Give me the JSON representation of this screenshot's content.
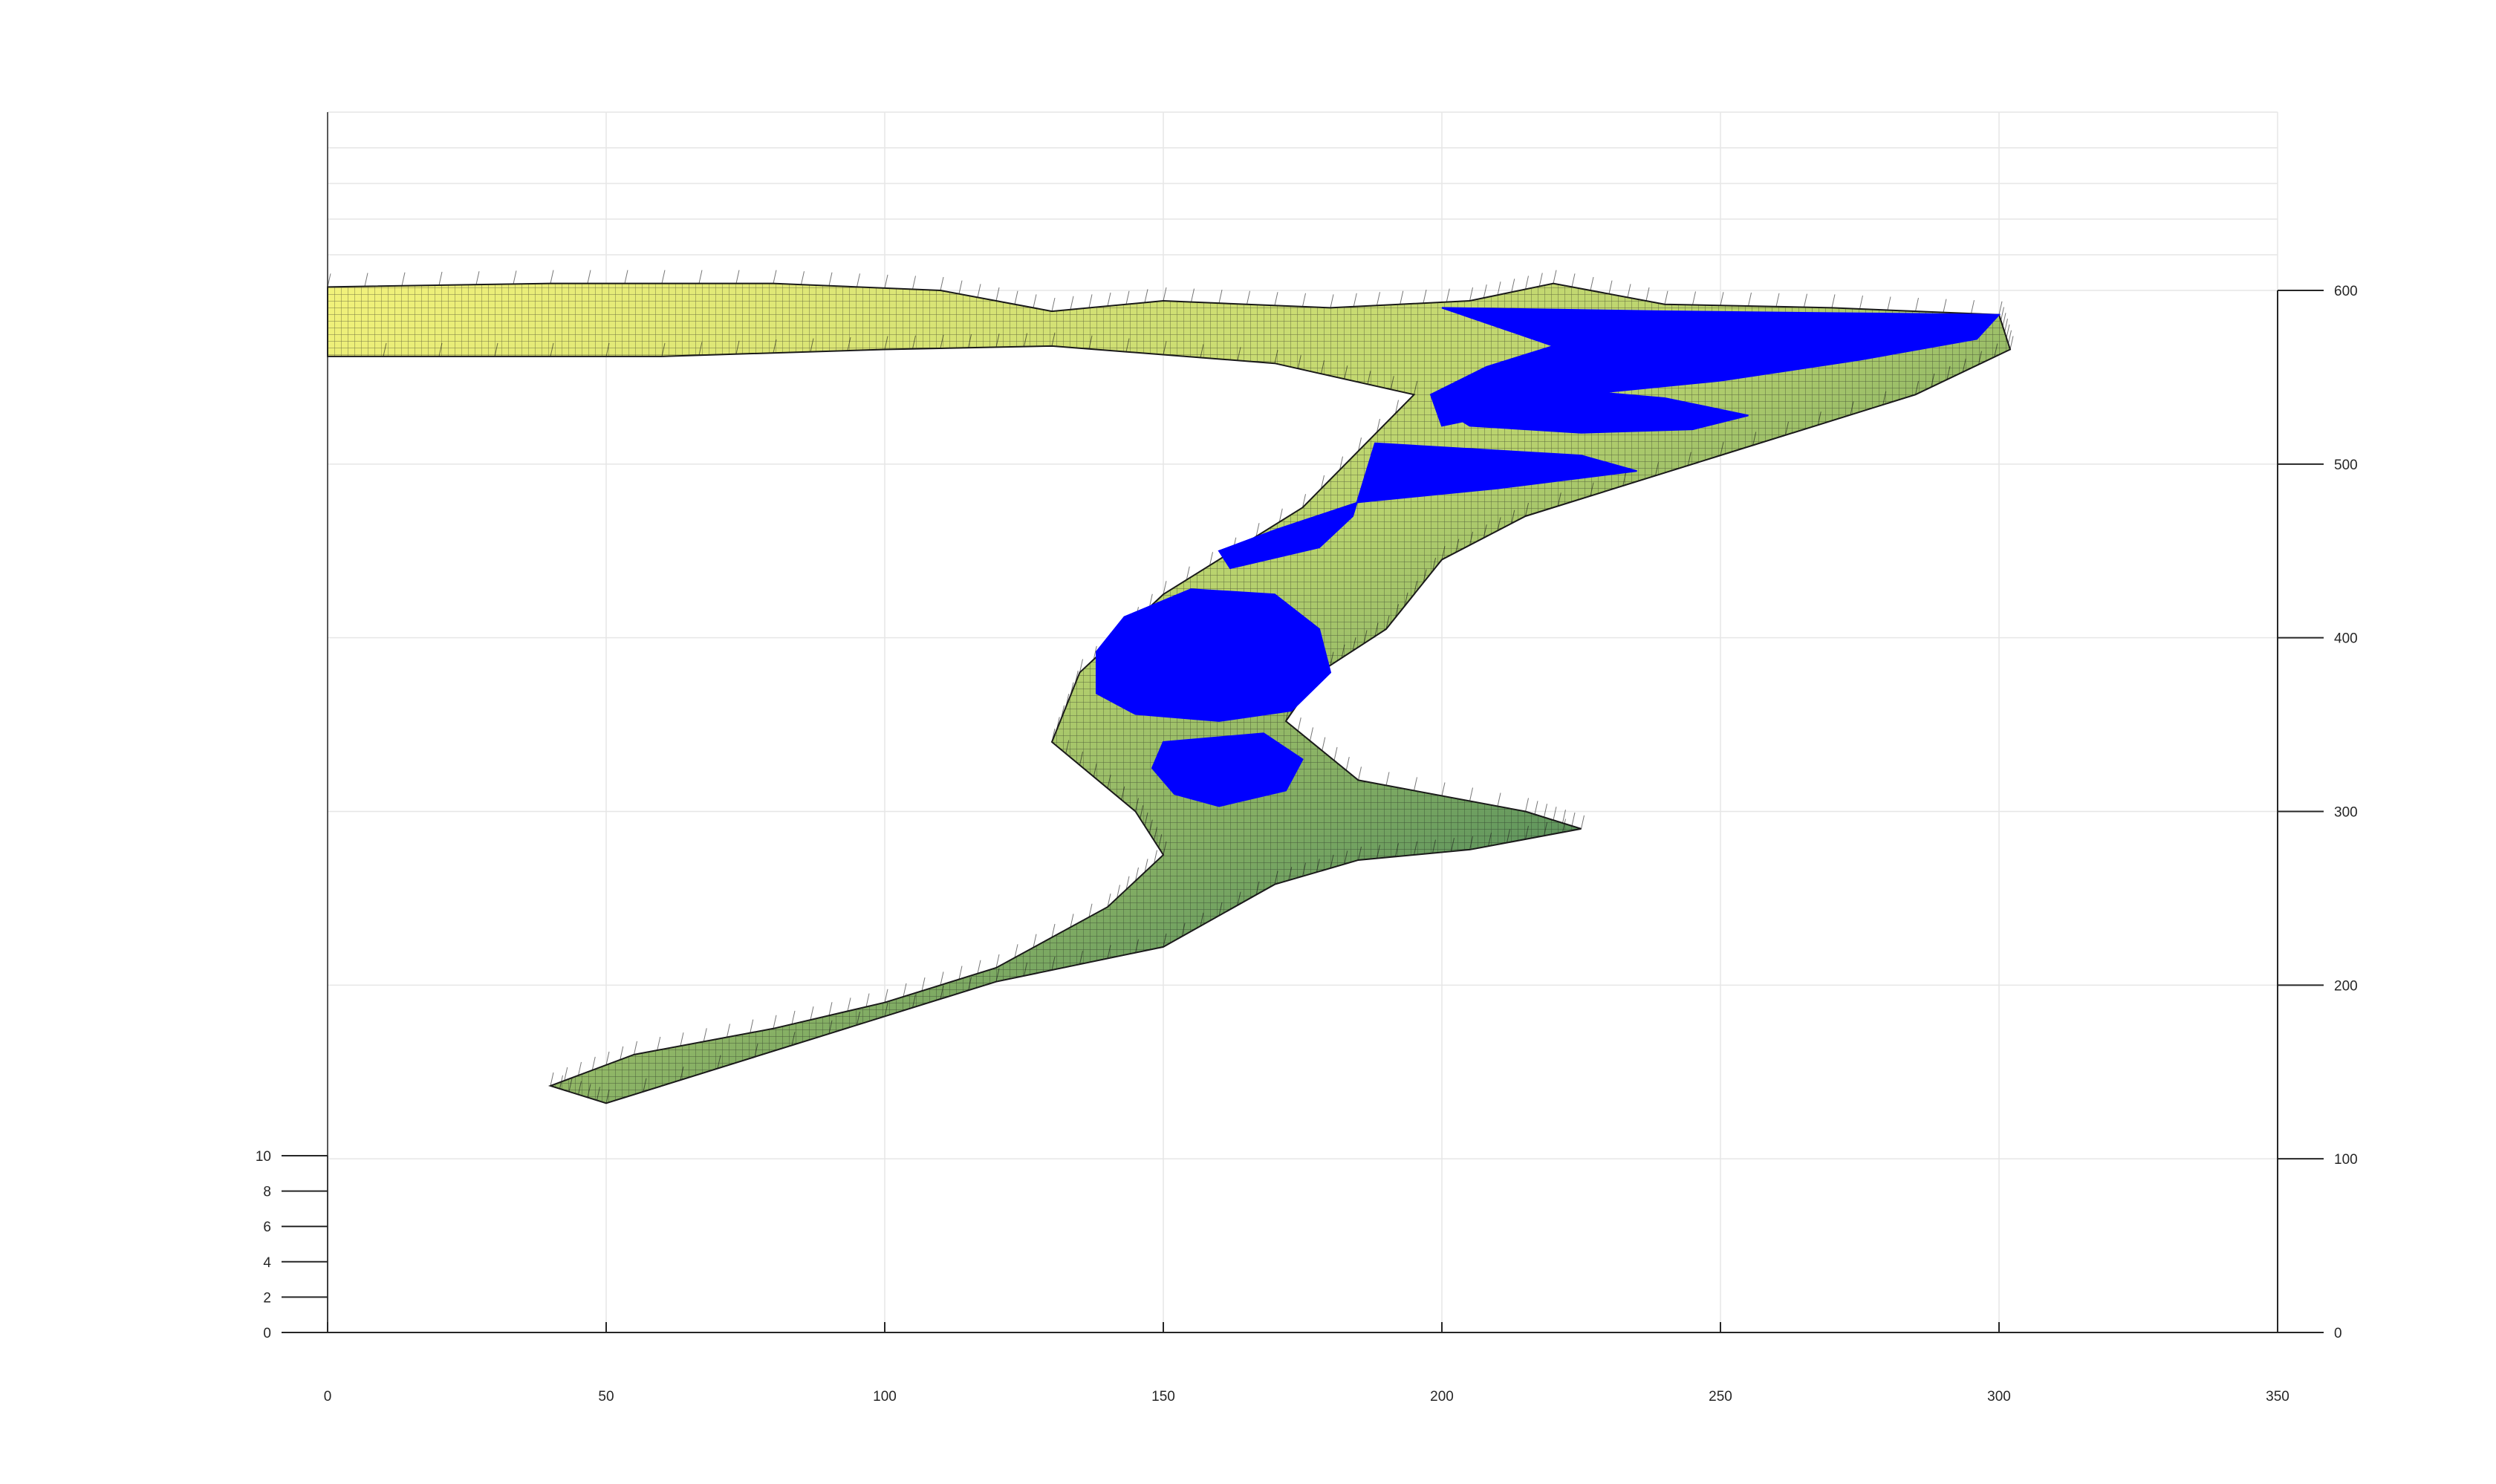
{
  "chart_data": {
    "type": "surface",
    "title": "",
    "xlabel": "",
    "ylabel": "",
    "zlabel": "",
    "grid": true,
    "xlim": [
      0,
      350
    ],
    "ylim": [
      0,
      600
    ],
    "zlim": [
      0,
      10
    ],
    "x_ticks": [
      "0",
      "50",
      "100",
      "150",
      "200",
      "250",
      "300",
      "350"
    ],
    "y_ticks": [
      "0",
      "100",
      "200",
      "300",
      "400",
      "500",
      "600"
    ],
    "z_ticks": [
      "0",
      "2",
      "4",
      "6",
      "8",
      "10"
    ],
    "colors": {
      "surface_light": "#f2f27a",
      "surface_mid": "#b8d26e",
      "surface_dark": "#4f8a5a",
      "water": "#0000ff",
      "mesh": "#1a1a1a",
      "grid": "#e6e6e6",
      "axis": "#262626"
    },
    "surface_outline": [
      [
        0,
        602
      ],
      [
        40,
        604
      ],
      [
        80,
        604
      ],
      [
        110,
        600
      ],
      [
        130,
        588
      ],
      [
        150,
        594
      ],
      [
        180,
        590
      ],
      [
        205,
        594
      ],
      [
        220,
        604
      ],
      [
        240,
        592
      ],
      [
        270,
        590
      ],
      [
        300,
        586
      ],
      [
        302,
        566
      ],
      [
        285,
        540
      ],
      [
        250,
        505
      ],
      [
        215,
        470
      ],
      [
        200,
        445
      ],
      [
        190,
        405
      ],
      [
        178,
        380
      ],
      [
        172,
        352
      ],
      [
        185,
        318
      ],
      [
        215,
        300
      ],
      [
        225,
        290
      ],
      [
        205,
        278
      ],
      [
        185,
        272
      ],
      [
        170,
        258
      ],
      [
        150,
        222
      ],
      [
        120,
        202
      ],
      [
        90,
        172
      ],
      [
        50,
        132
      ],
      [
        40,
        142
      ],
      [
        55,
        160
      ],
      [
        80,
        175
      ],
      [
        100,
        190
      ],
      [
        120,
        210
      ],
      [
        140,
        245
      ],
      [
        150,
        275
      ],
      [
        145,
        300
      ],
      [
        130,
        340
      ],
      [
        135,
        380
      ],
      [
        150,
        425
      ],
      [
        175,
        475
      ],
      [
        195,
        540
      ],
      [
        170,
        558
      ],
      [
        130,
        568
      ],
      [
        100,
        566
      ],
      [
        60,
        562
      ],
      [
        0,
        562
      ]
    ],
    "water_regions": [
      [
        [
          200,
          590
        ],
        [
          240,
          588
        ],
        [
          300,
          586
        ],
        [
          296,
          572
        ],
        [
          275,
          560
        ],
        [
          250,
          548
        ],
        [
          225,
          540
        ],
        [
          212,
          530
        ],
        [
          200,
          522
        ],
        [
          198,
          540
        ],
        [
          208,
          556
        ],
        [
          220,
          568
        ]
      ],
      [
        [
          215,
          545
        ],
        [
          240,
          538
        ],
        [
          255,
          528
        ],
        [
          245,
          520
        ],
        [
          225,
          518
        ],
        [
          205,
          522
        ],
        [
          200,
          532
        ]
      ],
      [
        [
          188,
          512
        ],
        [
          225,
          505
        ],
        [
          235,
          496
        ],
        [
          210,
          486
        ],
        [
          185,
          478
        ],
        [
          170,
          462
        ],
        [
          160,
          450
        ],
        [
          162,
          440
        ],
        [
          178,
          452
        ],
        [
          184,
          470
        ]
      ],
      [
        [
          155,
          428
        ],
        [
          170,
          425
        ],
        [
          178,
          405
        ],
        [
          180,
          380
        ],
        [
          173,
          358
        ],
        [
          160,
          352
        ],
        [
          145,
          356
        ],
        [
          138,
          368
        ],
        [
          138,
          392
        ],
        [
          143,
          412
        ]
      ],
      [
        [
          150,
          340
        ],
        [
          168,
          345
        ],
        [
          175,
          330
        ],
        [
          172,
          312
        ],
        [
          160,
          303
        ],
        [
          152,
          310
        ],
        [
          148,
          325
        ]
      ]
    ]
  }
}
